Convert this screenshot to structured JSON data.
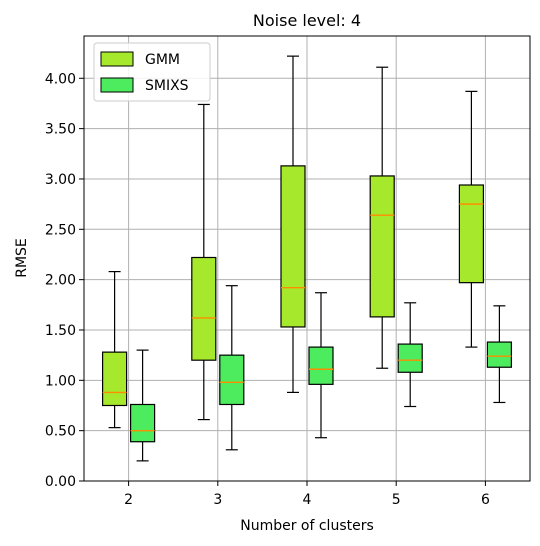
{
  "chart_data": {
    "type": "box",
    "title": "Noise level: 4",
    "xlabel": "Number of clusters",
    "ylabel": "RMSE",
    "categories": [
      "2",
      "3",
      "4",
      "5",
      "6"
    ],
    "ylim": [
      0,
      4.42
    ],
    "yticks": [
      "0.00",
      "0.50",
      "1.00",
      "1.50",
      "2.00",
      "2.50",
      "3.00",
      "3.50",
      "4.00"
    ],
    "grid": true,
    "legend_position": "top-left",
    "median_color": "#ff8c00",
    "series": [
      {
        "name": "GMM",
        "color": "#a6e82b",
        "boxes": [
          {
            "whislo": 0.53,
            "q1": 0.75,
            "med": 0.88,
            "q3": 1.28,
            "whishi": 2.08
          },
          {
            "whislo": 0.61,
            "q1": 1.2,
            "med": 1.62,
            "q3": 2.22,
            "whishi": 3.74
          },
          {
            "whislo": 0.88,
            "q1": 1.53,
            "med": 1.92,
            "q3": 3.13,
            "whishi": 4.22
          },
          {
            "whislo": 1.12,
            "q1": 1.63,
            "med": 2.64,
            "q3": 3.03,
            "whishi": 4.11
          },
          {
            "whislo": 1.33,
            "q1": 1.97,
            "med": 2.75,
            "q3": 2.94,
            "whishi": 3.87
          }
        ]
      },
      {
        "name": "SMIXS",
        "color": "#4deb5e",
        "boxes": [
          {
            "whislo": 0.2,
            "q1": 0.39,
            "med": 0.5,
            "q3": 0.76,
            "whishi": 1.3
          },
          {
            "whislo": 0.31,
            "q1": 0.76,
            "med": 0.98,
            "q3": 1.25,
            "whishi": 1.94
          },
          {
            "whislo": 0.43,
            "q1": 0.96,
            "med": 1.11,
            "q3": 1.33,
            "whishi": 1.87
          },
          {
            "whislo": 0.74,
            "q1": 1.08,
            "med": 1.2,
            "q3": 1.36,
            "whishi": 1.77
          },
          {
            "whislo": 0.78,
            "q1": 1.13,
            "med": 1.24,
            "q3": 1.38,
            "whishi": 1.74
          }
        ]
      }
    ]
  }
}
